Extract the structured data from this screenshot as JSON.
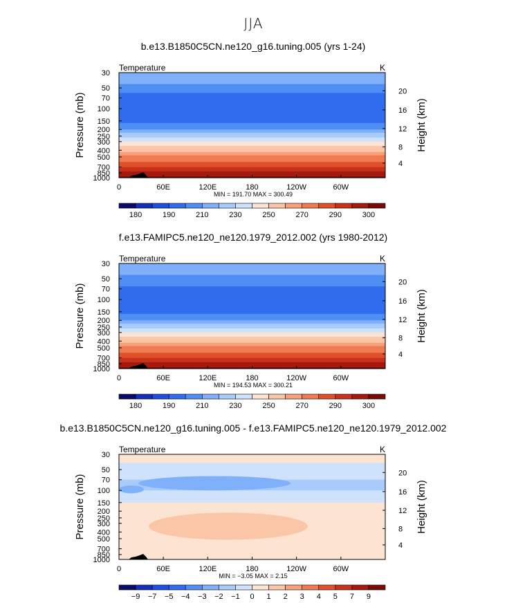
{
  "page_title": "JJA",
  "chart_data": [
    {
      "type": "heatmap",
      "title": "b.e13.B1850C5CN.ne120_g16.tuning.005 (yrs 1-24)",
      "variable_label": "Temperature",
      "units": "K",
      "ylabel": "Pressure (mb)",
      "y2label": "Height (km)",
      "x_ticks": [
        "0",
        "60E",
        "120E",
        "180",
        "120W",
        "60W"
      ],
      "y_ticks": [
        "30",
        "50",
        "70",
        "100",
        "150",
        "200",
        "250",
        "300",
        "400",
        "500",
        "700",
        "850",
        "1000"
      ],
      "y2_ticks": [
        "20",
        "16",
        "12",
        "8",
        "4"
      ],
      "stats": "MIN = 191.70   MAX = 300.49",
      "colorbar_labels": [
        "180",
        "190",
        "210",
        "230",
        "250",
        "270",
        "290",
        "300"
      ],
      "palette": [
        "#0b0b6b",
        "#1530b8",
        "#1e4fde",
        "#2f6cee",
        "#4f8ff5",
        "#7fb0f9",
        "#a8cbfb",
        "#cfe2fc",
        "#fde4d2",
        "#fbc6a8",
        "#f7a07a",
        "#f07a52",
        "#e0502a",
        "#c9321a",
        "#a51a0e",
        "#7a0a05"
      ],
      "profile": [
        {
          "p": 30,
          "v": 225
        },
        {
          "p": 50,
          "v": 213
        },
        {
          "p": 70,
          "v": 204
        },
        {
          "p": 100,
          "v": 199
        },
        {
          "p": 150,
          "v": 204
        },
        {
          "p": 200,
          "v": 217
        },
        {
          "p": 250,
          "v": 228
        },
        {
          "p": 300,
          "v": 239
        },
        {
          "p": 400,
          "v": 254
        },
        {
          "p": 500,
          "v": 266
        },
        {
          "p": 700,
          "v": 281
        },
        {
          "p": 850,
          "v": 291
        },
        {
          "p": 1000,
          "v": 299
        }
      ]
    },
    {
      "type": "heatmap",
      "title": "f.e13.FAMIPC5.ne120_ne120.1979_2012.002 (yrs 1980-2012)",
      "variable_label": "Temperature",
      "units": "K",
      "ylabel": "Pressure (mb)",
      "y2label": "Height (km)",
      "x_ticks": [
        "0",
        "60E",
        "120E",
        "180",
        "120W",
        "60W"
      ],
      "y_ticks": [
        "30",
        "50",
        "70",
        "100",
        "150",
        "200",
        "250",
        "300",
        "400",
        "500",
        "700",
        "850",
        "1000"
      ],
      "y2_ticks": [
        "20",
        "16",
        "12",
        "8",
        "4"
      ],
      "stats": "MIN = 194.53   MAX = 300.21",
      "colorbar_labels": [
        "180",
        "190",
        "210",
        "230",
        "250",
        "270",
        "290",
        "300"
      ],
      "palette": [
        "#0b0b6b",
        "#1530b8",
        "#1e4fde",
        "#2f6cee",
        "#4f8ff5",
        "#7fb0f9",
        "#a8cbfb",
        "#cfe2fc",
        "#fde4d2",
        "#fbc6a8",
        "#f7a07a",
        "#f07a52",
        "#e0502a",
        "#c9321a",
        "#a51a0e",
        "#7a0a05"
      ],
      "profile": [
        {
          "p": 30,
          "v": 225
        },
        {
          "p": 50,
          "v": 213
        },
        {
          "p": 70,
          "v": 205
        },
        {
          "p": 100,
          "v": 200
        },
        {
          "p": 150,
          "v": 205
        },
        {
          "p": 200,
          "v": 217
        },
        {
          "p": 250,
          "v": 228
        },
        {
          "p": 300,
          "v": 239
        },
        {
          "p": 400,
          "v": 254
        },
        {
          "p": 500,
          "v": 266
        },
        {
          "p": 700,
          "v": 281
        },
        {
          "p": 850,
          "v": 291
        },
        {
          "p": 1000,
          "v": 299
        }
      ]
    },
    {
      "type": "heatmap",
      "title": "b.e13.B1850C5CN.ne120_g16.tuning.005 - f.e13.FAMIPC5.ne120_ne120.1979_2012.002",
      "variable_label": "Temperature",
      "units": "K",
      "ylabel": "Pressure (mb)",
      "y2label": "Height (km)",
      "x_ticks": [
        "0",
        "60E",
        "120E",
        "180",
        "120W",
        "60W"
      ],
      "y_ticks": [
        "30",
        "50",
        "70",
        "100",
        "150",
        "200",
        "250",
        "300",
        "400",
        "500",
        "700",
        "850",
        "1000"
      ],
      "y2_ticks": [
        "20",
        "16",
        "12",
        "8",
        "4"
      ],
      "stats": "MIN =  −3.05   MAX =    2.15",
      "colorbar_labels": [
        "−9",
        "−7",
        "−5",
        "−4",
        "−3",
        "−2",
        "−1",
        "0",
        "1",
        "2",
        "3",
        "4",
        "5",
        "7",
        "9"
      ],
      "palette": [
        "#0b0b6b",
        "#1530b8",
        "#1e4fde",
        "#2f6cee",
        "#4f8ff5",
        "#7fb0f9",
        "#a8cbfb",
        "#cfe2fc",
        "#fde4d2",
        "#fbc6a8",
        "#f7a07a",
        "#f07a52",
        "#e0502a",
        "#c9321a",
        "#a51a0e",
        "#7a0a05"
      ],
      "difference_levels": [
        {
          "p_top": 30,
          "p_bottom": 40,
          "value": 0.5
        },
        {
          "p_top": 40,
          "p_bottom": 70,
          "value": -0.5
        },
        {
          "p_top": 70,
          "p_bottom": 100,
          "value": -1.5
        },
        {
          "p_top": 100,
          "p_bottom": 150,
          "value": -0.5
        },
        {
          "p_top": 150,
          "p_bottom": 700,
          "value": 0.5
        },
        {
          "p_top": 700,
          "p_bottom": 1000,
          "value": 0.3
        }
      ]
    }
  ]
}
